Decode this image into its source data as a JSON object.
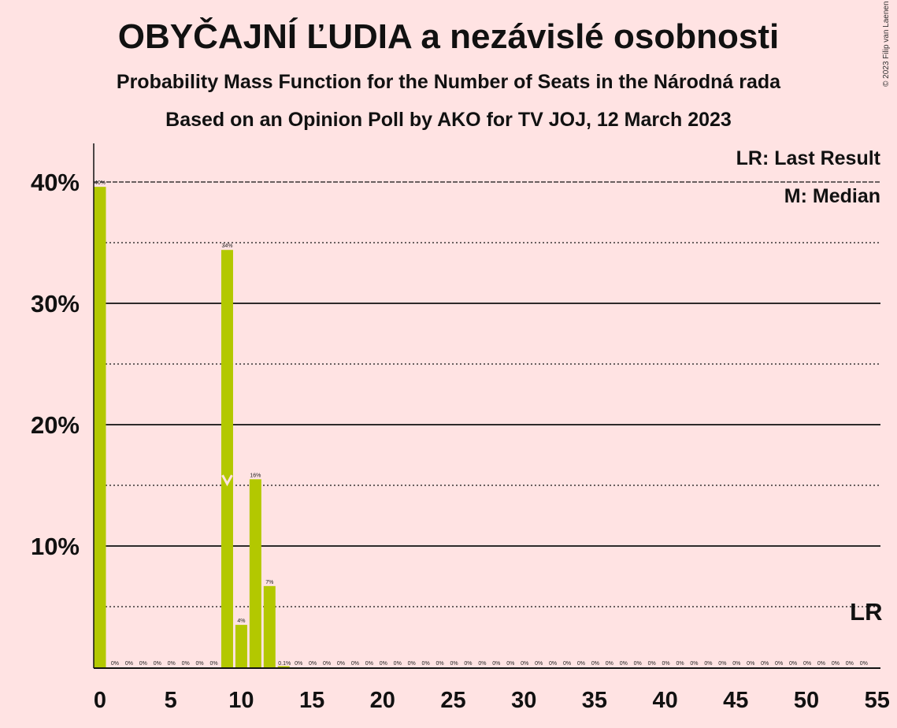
{
  "header": {
    "title": "OBYČAJNÍ ĽUDIA a nezávislé osobnosti",
    "subtitle": "Probability Mass Function for the Number of Seats in the Národná rada",
    "source": "Based on an Opinion Poll by AKO for TV JOJ, 12 March 2023",
    "copyright": "© 2023 Filip van Laenen"
  },
  "legend": {
    "last_result": "LR: Last Result",
    "median": "M: Median"
  },
  "colors": {
    "background": "#ffe3e3",
    "bar": "#b3c800",
    "text": "#111111"
  },
  "chart_data": {
    "type": "bar",
    "x": [
      0,
      1,
      2,
      3,
      4,
      5,
      6,
      7,
      8,
      9,
      10,
      11,
      12,
      13,
      14,
      15,
      16,
      17,
      18,
      19,
      20,
      21,
      22,
      23,
      24,
      25,
      26,
      27,
      28,
      29,
      30,
      31,
      32,
      33,
      34,
      35,
      36,
      37,
      38,
      39,
      40,
      41,
      42,
      43,
      44,
      45,
      46,
      47,
      48,
      49,
      50,
      51,
      52,
      53,
      54,
      55
    ],
    "values": [
      39.6,
      0,
      0,
      0,
      0,
      0,
      0,
      0,
      0,
      34.4,
      3.5,
      15.5,
      6.7,
      0.1,
      0,
      0,
      0,
      0,
      0,
      0,
      0,
      0,
      0,
      0,
      0,
      0,
      0,
      0,
      0,
      0,
      0,
      0,
      0,
      0,
      0,
      0,
      0,
      0,
      0,
      0,
      0,
      0,
      0,
      0,
      0,
      0,
      0,
      0,
      0,
      0,
      0,
      0,
      0,
      0,
      0
    ],
    "labels": [
      "40%",
      "0%",
      "0%",
      "0%",
      "0%",
      "0%",
      "0%",
      "0%",
      "0%",
      "34%",
      "4%",
      "16%",
      "7%",
      "0.1%",
      "0%",
      "0%",
      "0%",
      "0%",
      "0%",
      "0%",
      "0%",
      "0%",
      "0%",
      "0%",
      "0%",
      "0%",
      "0%",
      "0%",
      "0%",
      "0%",
      "0%",
      "0%",
      "0%",
      "0%",
      "0%",
      "0%",
      "0%",
      "0%",
      "0%",
      "0%",
      "0%",
      "0%",
      "0%",
      "0%",
      "0%",
      "0%",
      "0%",
      "0%",
      "0%",
      "0%",
      "0%",
      "0%",
      "0%",
      "0%",
      "0%"
    ],
    "xlim": [
      0,
      55
    ],
    "ylim": [
      0,
      43
    ],
    "x_ticks": [
      0,
      5,
      10,
      15,
      20,
      25,
      30,
      35,
      40,
      45,
      50,
      55
    ],
    "y_ticks_solid": [
      10,
      20,
      30,
      40
    ],
    "y_ticks_dotted": [
      5,
      15,
      25,
      35
    ],
    "y_tick_labels": [
      "10%",
      "20%",
      "30%",
      "40%"
    ],
    "median_seats": 9,
    "last_result_seats": 53,
    "last_result_label": "LR",
    "grid": true,
    "legend_position": "top-right"
  }
}
